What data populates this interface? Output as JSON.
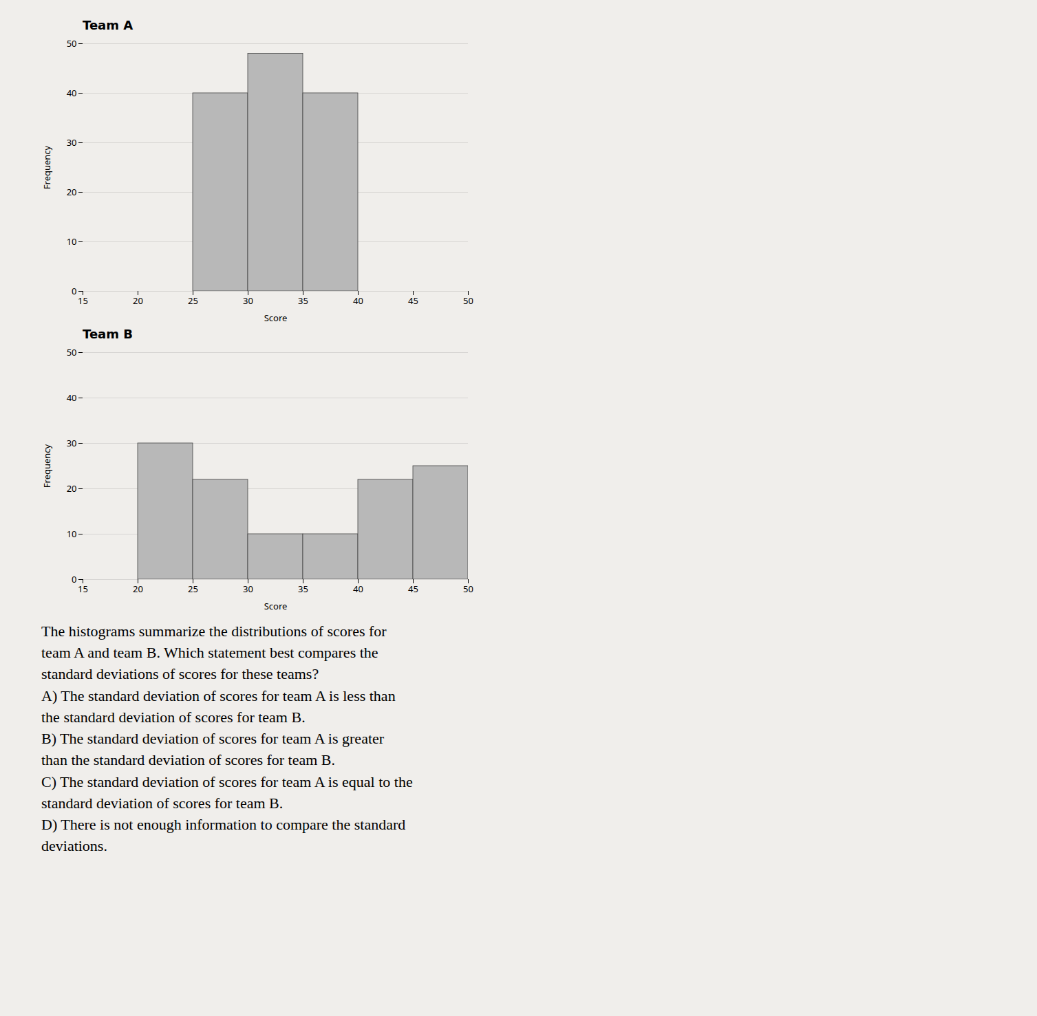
{
  "chart_data": [
    {
      "type": "histogram",
      "title": "Team A",
      "x_label": "Score",
      "y_label": "Frequency",
      "bins": [
        15,
        20,
        25,
        30,
        35,
        40,
        45,
        50
      ],
      "values": [
        0,
        0,
        40,
        48,
        40,
        0,
        0
      ],
      "color": "#b8b8b8",
      "xlim": [
        15,
        50
      ],
      "xticks": [
        15,
        20,
        25,
        30,
        35,
        40,
        45,
        50
      ],
      "ylim": [
        0,
        50
      ],
      "yticks": [
        0,
        10,
        20,
        30,
        40,
        50
      ],
      "grid": true
    },
    {
      "type": "histogram",
      "title": "Team B",
      "x_label": "Score",
      "y_label": "Frequency",
      "bins": [
        15,
        20,
        25,
        30,
        35,
        40,
        45,
        50
      ],
      "values": [
        0,
        30,
        22,
        10,
        10,
        22,
        25
      ],
      "color": "#b8b8b8",
      "xlim": [
        15,
        50
      ],
      "xticks": [
        15,
        20,
        25,
        30,
        35,
        40,
        45,
        50
      ],
      "ylim": [
        0,
        50
      ],
      "yticks": [
        0,
        10,
        20,
        30,
        40,
        50
      ],
      "grid": true,
      "annotations": [
        "The histograms summarize the distributions of scores for",
        "team A and team B. Which statement best compares the",
        "standard deviations of scores for these teams?",
        "A) The standard deviation of scores for team A is less than",
        "the standard deviation of scores for team B.",
        "B) The standard deviation of scores for team A is greater",
        "than the standard deviation of scores for team B.",
        "C) The standard deviation of scores for team A is equal to the",
        "standard deviation of scores for team B.",
        "D)  There is not enough information to compare the standard",
        "deviations."
      ]
    }
  ]
}
